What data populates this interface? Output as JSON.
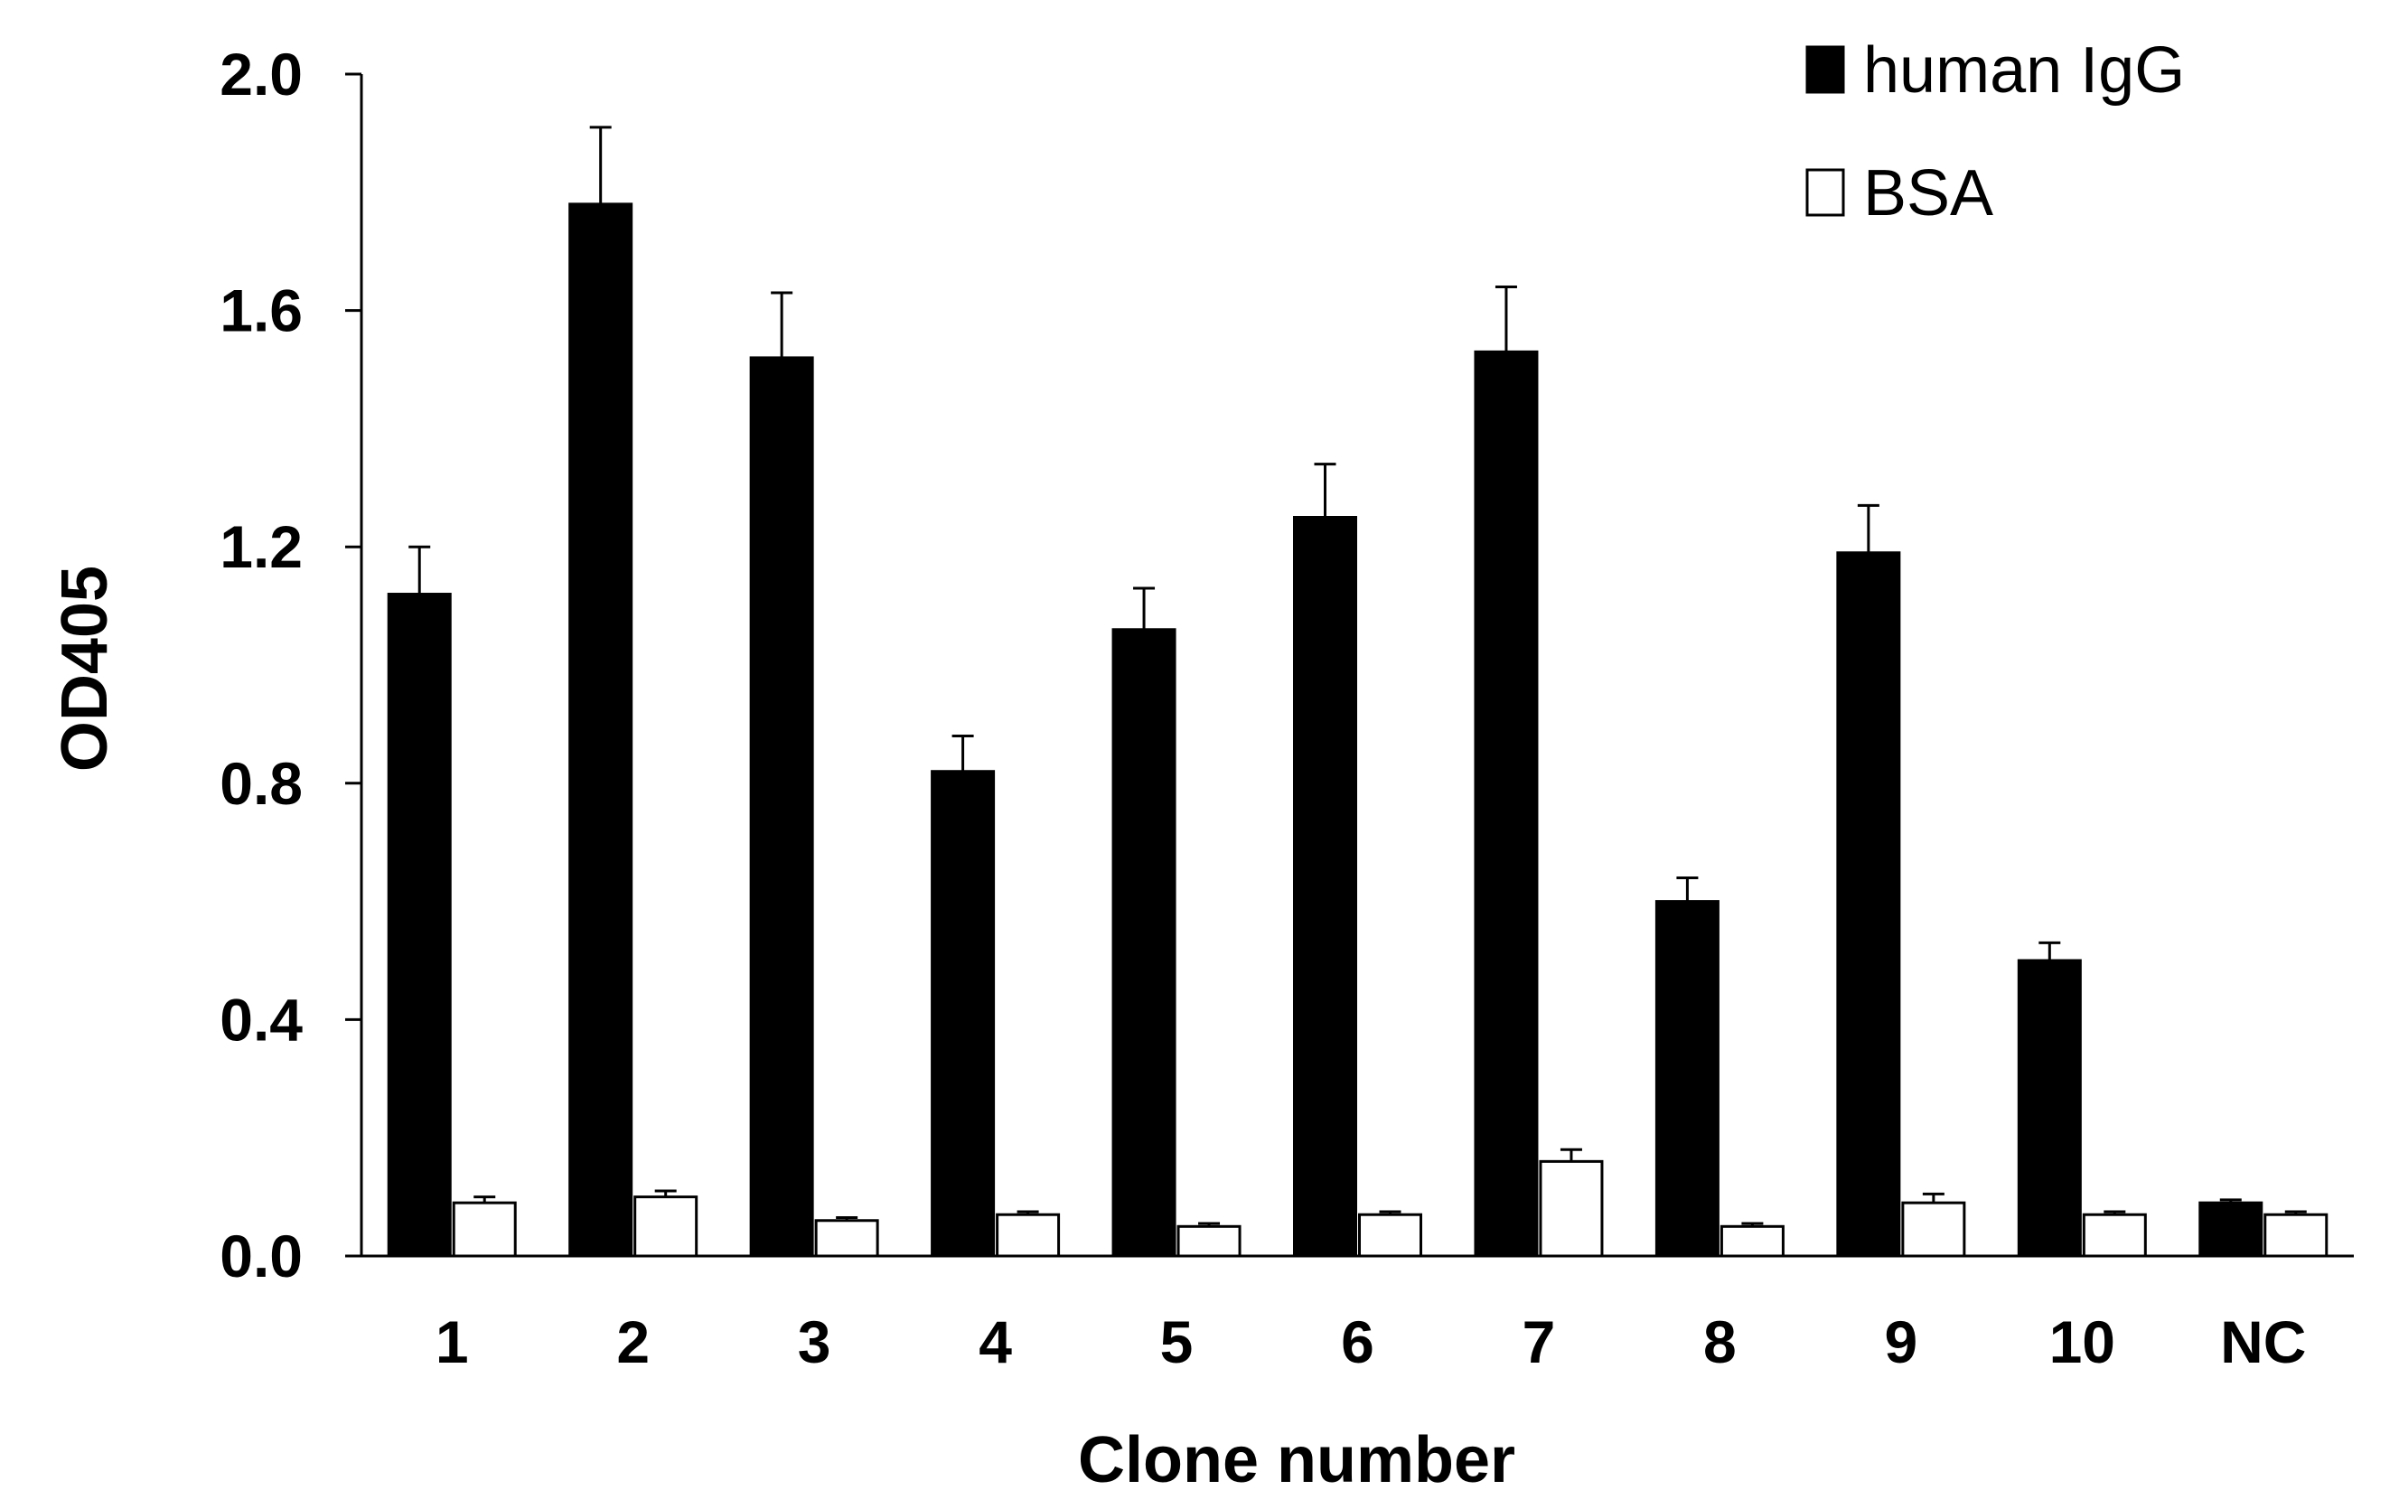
{
  "chart_data": {
    "type": "bar",
    "title": "",
    "xlabel": "Clone number",
    "ylabel": "OD405",
    "ylim": [
      0,
      2.0
    ],
    "yticks": [
      "0.0",
      "0.4",
      "0.8",
      "1.2",
      "1.6",
      "2.0"
    ],
    "grid": false,
    "legend_position": "top-right",
    "categories": [
      "1",
      "2",
      "3",
      "4",
      "5",
      "6",
      "7",
      "8",
      "9",
      "10",
      "NC"
    ],
    "series": [
      {
        "name": "human IgG",
        "color": "#000000",
        "values": [
          1.12,
          1.78,
          1.52,
          0.82,
          1.06,
          1.25,
          1.53,
          0.6,
          1.19,
          0.5,
          0.09
        ],
        "errors": [
          0.08,
          0.13,
          0.11,
          0.06,
          0.07,
          0.09,
          0.11,
          0.04,
          0.08,
          0.03,
          0.005
        ]
      },
      {
        "name": "BSA",
        "color": "#ffffff",
        "values": [
          0.09,
          0.1,
          0.06,
          0.07,
          0.05,
          0.07,
          0.16,
          0.05,
          0.09,
          0.07,
          0.07
        ],
        "errors": [
          0.01,
          0.01,
          0.005,
          0.005,
          0.005,
          0.005,
          0.02,
          0.005,
          0.015,
          0.005,
          0.005
        ]
      }
    ]
  }
}
